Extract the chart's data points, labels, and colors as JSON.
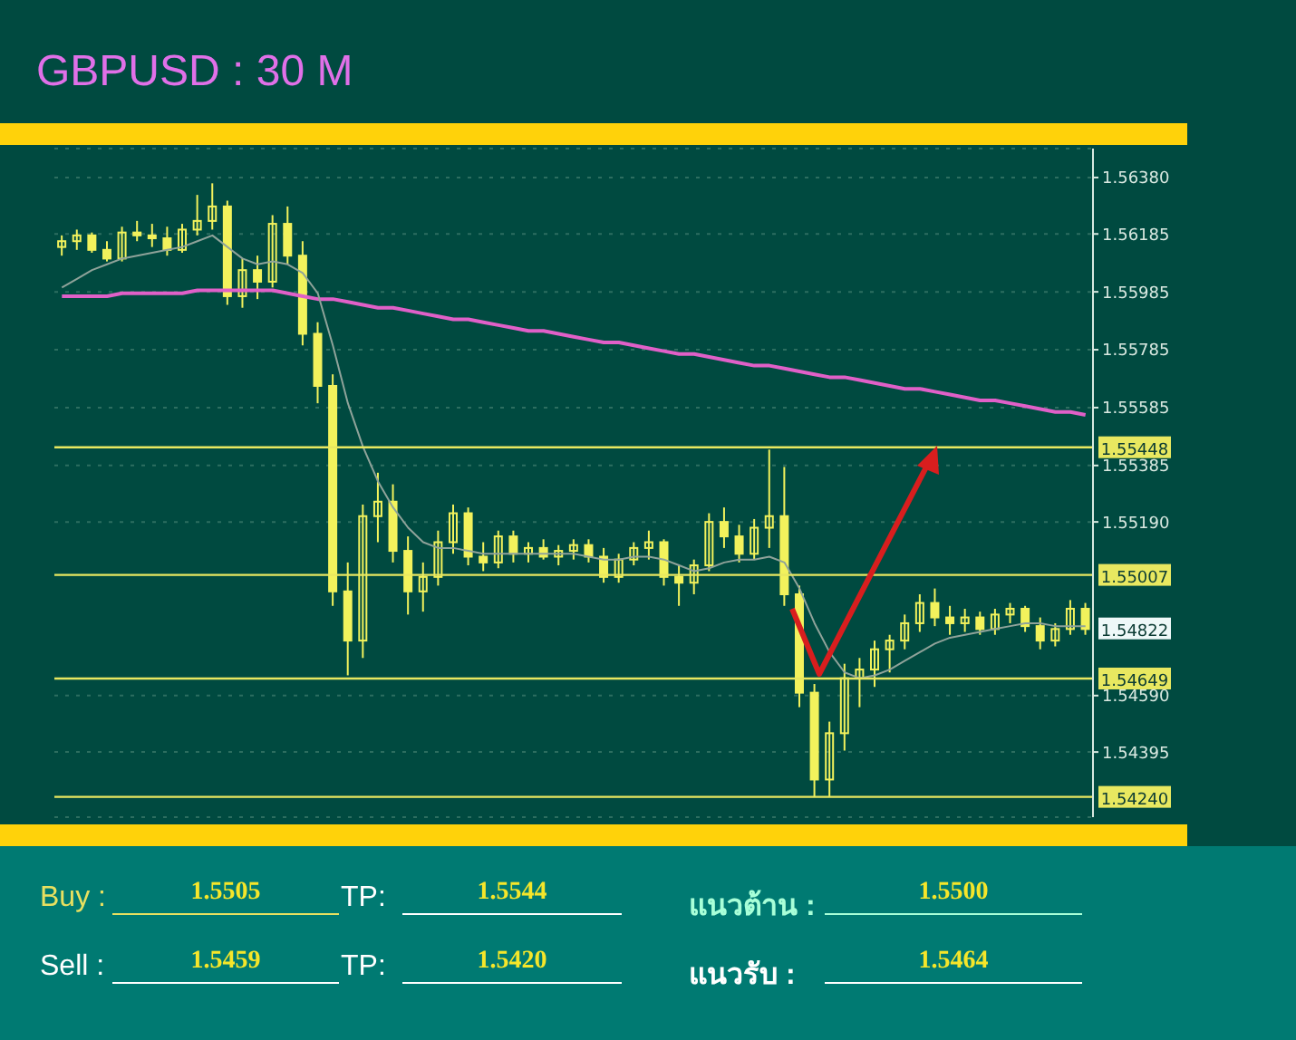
{
  "chart_data": {
    "type": "candlestick",
    "title": "GBPUSD : 30 M",
    "categories": [
      null,
      null,
      null,
      null,
      null,
      null,
      null,
      null,
      null,
      null,
      null,
      null,
      null,
      null,
      null,
      null,
      null,
      null,
      null,
      null,
      null,
      null,
      null,
      null,
      null,
      null,
      null,
      null,
      null,
      null,
      null,
      null,
      null,
      null,
      null,
      null,
      null,
      null,
      null,
      null,
      null,
      null,
      null,
      null,
      null,
      null,
      null,
      null,
      null,
      null,
      null,
      null,
      null,
      null,
      null,
      null,
      null,
      null,
      null,
      null,
      null,
      null,
      null,
      null,
      null,
      null,
      null,
      null,
      null
    ],
    "series": [
      {
        "color": "#f2f25c",
        "ohlc": [
          [
            1.5614,
            1.5618,
            1.5611,
            1.5616
          ],
          [
            1.5616,
            1.562,
            1.5613,
            1.5618
          ],
          [
            1.5618,
            1.5619,
            1.5612,
            1.5613
          ],
          [
            1.5613,
            1.5616,
            1.5609,
            1.561
          ],
          [
            1.561,
            1.5621,
            1.5609,
            1.5619
          ],
          [
            1.5619,
            1.5623,
            1.5616,
            1.5618
          ],
          [
            1.5618,
            1.5622,
            1.5614,
            1.5617
          ],
          [
            1.5617,
            1.5621,
            1.5611,
            1.5613
          ],
          [
            1.5613,
            1.5622,
            1.5612,
            1.562
          ],
          [
            1.562,
            1.5632,
            1.5618,
            1.5623
          ],
          [
            1.5623,
            1.5636,
            1.562,
            1.5628
          ],
          [
            1.5628,
            1.563,
            1.5594,
            1.5597
          ],
          [
            1.5597,
            1.561,
            1.5593,
            1.5606
          ],
          [
            1.5606,
            1.5611,
            1.5596,
            1.5602
          ],
          [
            1.5602,
            1.5625,
            1.56,
            1.5622
          ],
          [
            1.5622,
            1.5628,
            1.5608,
            1.5611
          ],
          [
            1.5611,
            1.5616,
            1.558,
            1.5584
          ],
          [
            1.5584,
            1.5588,
            1.556,
            1.5566
          ],
          [
            1.5566,
            1.557,
            1.549,
            1.5495
          ],
          [
            1.5495,
            1.5505,
            1.5466,
            1.5478
          ],
          [
            1.5478,
            1.5525,
            1.5472,
            1.5521
          ],
          [
            1.5521,
            1.5536,
            1.5512,
            1.5526
          ],
          [
            1.5526,
            1.5532,
            1.5505,
            1.5509
          ],
          [
            1.5509,
            1.5514,
            1.5487,
            1.5495
          ],
          [
            1.5495,
            1.5505,
            1.5488,
            1.55
          ],
          [
            1.55,
            1.5516,
            1.5497,
            1.5512
          ],
          [
            1.5512,
            1.5525,
            1.5508,
            1.5522
          ],
          [
            1.5522,
            1.5524,
            1.5504,
            1.5507
          ],
          [
            1.5507,
            1.5512,
            1.5502,
            1.5505
          ],
          [
            1.5505,
            1.5516,
            1.5503,
            1.5514
          ],
          [
            1.5514,
            1.5516,
            1.5505,
            1.5508
          ],
          [
            1.5508,
            1.5512,
            1.5505,
            1.551
          ],
          [
            1.551,
            1.5513,
            1.5506,
            1.5507
          ],
          [
            1.5507,
            1.5511,
            1.5504,
            1.5509
          ],
          [
            1.5509,
            1.5513,
            1.5506,
            1.5511
          ],
          [
            1.5511,
            1.5513,
            1.5505,
            1.5507
          ],
          [
            1.5507,
            1.551,
            1.5498,
            1.55
          ],
          [
            1.55,
            1.5508,
            1.5498,
            1.5506
          ],
          [
            1.5506,
            1.5512,
            1.5504,
            1.551
          ],
          [
            1.551,
            1.5516,
            1.5506,
            1.5512
          ],
          [
            1.5512,
            1.5513,
            1.5497,
            1.55
          ],
          [
            1.55,
            1.5504,
            1.549,
            1.5498
          ],
          [
            1.5498,
            1.5506,
            1.5494,
            1.5504
          ],
          [
            1.5504,
            1.5522,
            1.5502,
            1.5519
          ],
          [
            1.5519,
            1.5524,
            1.551,
            1.5514
          ],
          [
            1.5514,
            1.5518,
            1.5505,
            1.5508
          ],
          [
            1.5508,
            1.552,
            1.5506,
            1.5517
          ],
          [
            1.5517,
            1.5544,
            1.551,
            1.5521
          ],
          [
            1.5521,
            1.5538,
            1.549,
            1.5494
          ],
          [
            1.5494,
            1.5497,
            1.5455,
            1.546
          ],
          [
            1.546,
            1.5463,
            1.5424,
            1.543
          ],
          [
            1.543,
            1.545,
            1.5424,
            1.5446
          ],
          [
            1.5446,
            1.547,
            1.544,
            1.5465
          ],
          [
            1.5465,
            1.5472,
            1.5455,
            1.5468
          ],
          [
            1.5468,
            1.5478,
            1.5462,
            1.5475
          ],
          [
            1.5475,
            1.548,
            1.5467,
            1.5478
          ],
          [
            1.5478,
            1.5487,
            1.5475,
            1.5484
          ],
          [
            1.5484,
            1.5494,
            1.5481,
            1.5491
          ],
          [
            1.5491,
            1.5496,
            1.5483,
            1.5486
          ],
          [
            1.5486,
            1.549,
            1.548,
            1.5484
          ],
          [
            1.5484,
            1.5489,
            1.5481,
            1.5486
          ],
          [
            1.5486,
            1.5488,
            1.548,
            1.5482
          ],
          [
            1.5482,
            1.5489,
            1.548,
            1.5487
          ],
          [
            1.5487,
            1.5491,
            1.5484,
            1.5489
          ],
          [
            1.5489,
            1.549,
            1.5481,
            1.5483
          ],
          [
            1.5483,
            1.5486,
            1.5475,
            1.5478
          ],
          [
            1.5478,
            1.5484,
            1.5476,
            1.5482
          ],
          [
            1.5482,
            1.5492,
            1.548,
            1.5489
          ],
          [
            1.5489,
            1.5491,
            1.548,
            1.5482
          ]
        ]
      },
      {
        "type": "line",
        "color": "#e060c8",
        "values": [
          1.5597,
          1.5597,
          1.5597,
          1.5597,
          1.5598,
          1.5598,
          1.5598,
          1.5598,
          1.5598,
          1.5599,
          1.5599,
          1.5599,
          1.5599,
          1.5599,
          1.5599,
          1.5598,
          1.5597,
          1.5596,
          1.5596,
          1.5595,
          1.5594,
          1.5593,
          1.5593,
          1.5592,
          1.5591,
          1.559,
          1.5589,
          1.5589,
          1.5588,
          1.5587,
          1.5586,
          1.5585,
          1.5585,
          1.5584,
          1.5583,
          1.5582,
          1.5581,
          1.5581,
          1.558,
          1.5579,
          1.5578,
          1.5577,
          1.5577,
          1.5576,
          1.5575,
          1.5574,
          1.5573,
          1.5573,
          1.5572,
          1.5571,
          1.557,
          1.5569,
          1.5569,
          1.5568,
          1.5567,
          1.5566,
          1.5565,
          1.5565,
          1.5564,
          1.5563,
          1.5562,
          1.5561,
          1.5561,
          1.556,
          1.5559,
          1.5558,
          1.5557,
          1.5557,
          1.5556
        ]
      },
      {
        "type": "line",
        "color": "#8fa39a",
        "values": [
          1.56,
          1.5603,
          1.5606,
          1.5608,
          1.561,
          1.5611,
          1.5612,
          1.5613,
          1.5614,
          1.5616,
          1.5618,
          1.5614,
          1.561,
          1.5608,
          1.5609,
          1.5608,
          1.5605,
          1.5598,
          1.558,
          1.556,
          1.5545,
          1.5533,
          1.5524,
          1.5517,
          1.5512,
          1.551,
          1.551,
          1.5509,
          1.5508,
          1.5508,
          1.5508,
          1.5508,
          1.5508,
          1.5508,
          1.5508,
          1.5507,
          1.5506,
          1.5506,
          1.5507,
          1.5507,
          1.5506,
          1.5504,
          1.5502,
          1.5503,
          1.5505,
          1.5506,
          1.5506,
          1.5507,
          1.5505,
          1.5496,
          1.5484,
          1.5474,
          1.5467,
          1.5465,
          1.5466,
          1.5468,
          1.5471,
          1.5474,
          1.5477,
          1.5479,
          1.548,
          1.5481,
          1.5482,
          1.5483,
          1.5484,
          1.5484,
          1.5483,
          1.5483,
          1.5483
        ]
      }
    ],
    "ylim": [
      1.5417,
      1.5648
    ],
    "yticks": [
      {
        "value": 1.5638,
        "label": "1.56380"
      },
      {
        "value": 1.56185,
        "label": "1.56185"
      },
      {
        "value": 1.55985,
        "label": "1.55985"
      },
      {
        "value": 1.55785,
        "label": "1.55785"
      },
      {
        "value": 1.55585,
        "label": "1.55585"
      },
      {
        "value": 1.55385,
        "label": "1.55385"
      },
      {
        "value": 1.5519,
        "label": "1.55190"
      },
      {
        "value": 1.5459,
        "label": "1.54590"
      },
      {
        "value": 1.54395,
        "label": "1.54395"
      }
    ],
    "tick_labels": "y",
    "grid": "y",
    "ref_lines": [
      {
        "axis": "y",
        "value": 1.55448,
        "label": "1.55448",
        "color": "#e8e860"
      },
      {
        "axis": "y",
        "value": 1.55007,
        "label": "1.55007",
        "color": "#e8e860"
      },
      {
        "axis": "y",
        "value": 1.54649,
        "label": "1.54649",
        "color": "#e8e860"
      },
      {
        "axis": "y",
        "value": 1.5424,
        "label": "1.54240",
        "color": "#e8e860"
      }
    ],
    "annotations": [
      {
        "text": "1.54822",
        "y": 1.54822
      },
      "Buy :",
      "1.5505",
      "TP:",
      "1.5544",
      "แนวต้าน :",
      "1.5500",
      "Sell :",
      "1.5459",
      "TP:",
      "1.5420",
      "แนวรับ :",
      "1.5464"
    ]
  }
}
